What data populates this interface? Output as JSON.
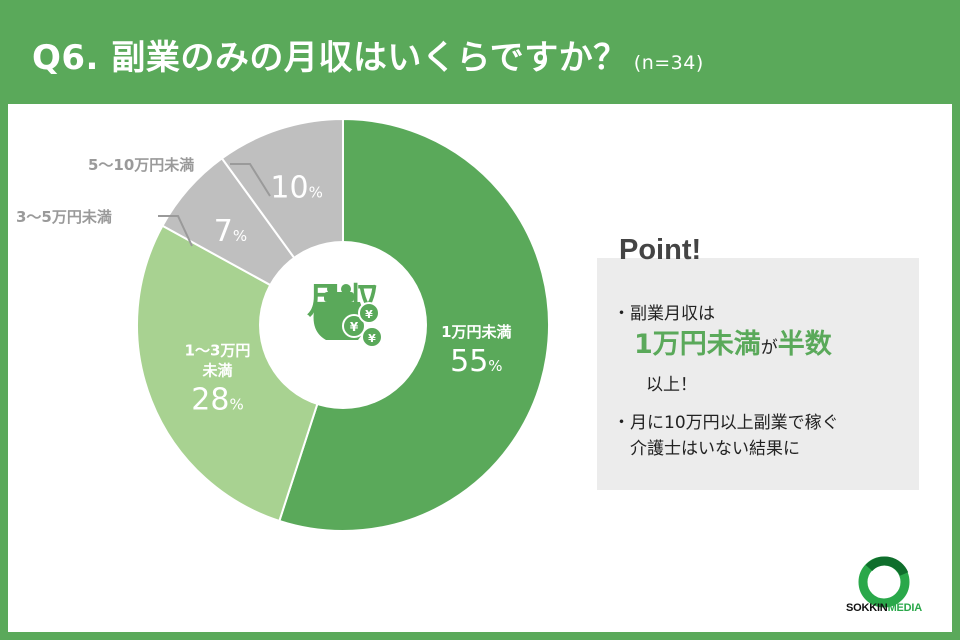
{
  "header": {
    "title": "Q6. 副業のみの月収はいくらですか？",
    "sample": "(n=34)"
  },
  "chart_data": {
    "type": "pie",
    "title": "Q6. 副業のみの月収はいくらですか？",
    "center_label": "月収",
    "categories": [
      "1万円未満",
      "1〜3万円未満",
      "3〜5万円未満",
      "5〜10万円未満"
    ],
    "values": [
      55,
      28,
      7,
      10
    ],
    "unit": "%",
    "colors": [
      "#5aa95a",
      "#a8d291",
      "#bfbfbf",
      "#bfbfbf"
    ],
    "slice_labels": [
      {
        "line1": "1万円未満",
        "line2": "",
        "value": "55",
        "unit": "%"
      },
      {
        "line1": "1〜3万円",
        "line2": "未満",
        "value": "28",
        "unit": "%"
      },
      {
        "line1": "",
        "line2": "",
        "value": "7",
        "unit": "%"
      },
      {
        "line1": "",
        "line2": "",
        "value": "10",
        "unit": "%"
      }
    ],
    "outer_labels": [
      "3〜5万円未満",
      "5〜10万円未満"
    ]
  },
  "point": {
    "title": "Point!",
    "bullet1_pre": "・副業月収は",
    "bullet1_highlight": "1万円未満",
    "bullet1_mid": "が",
    "bullet1_highlight2": "半数",
    "bullet1_post": "以上！",
    "bullet2_line1": "・月に10万円以上副業で稼ぐ",
    "bullet2_line2": "介護士はいない結果に"
  },
  "logo": {
    "name1": "SOKKIN",
    "name2": "MEDIA"
  },
  "colors": {
    "accent": "#5aa95a",
    "light_green": "#a8d291",
    "gray": "#bfbfbf"
  }
}
